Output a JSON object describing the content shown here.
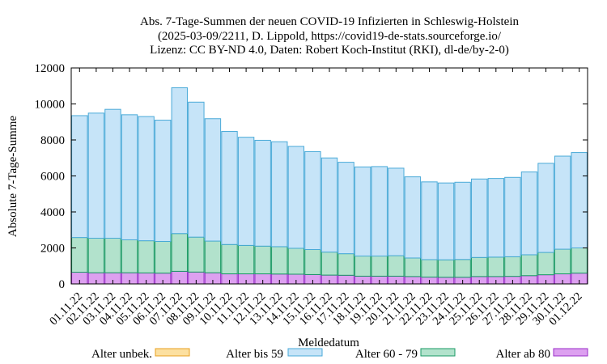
{
  "chart_data": {
    "type": "bar",
    "stacked": true,
    "title_lines": [
      "Abs. 7-Tage-Summen der neuen COVID-19 Infizierten in Schleswig-Holstein",
      "(2025-03-09/2211, D. Lippold, https://covid19-de-stats.sourceforge.io/",
      "Lizenz: CC BY-ND 4.0, Daten: Robert Koch-Institut (RKI), dl-de/by-2-0)"
    ],
    "xlabel": "Meldedatum",
    "ylabel": "Absolute 7-Tage-Summe",
    "ylim": [
      0,
      12000
    ],
    "yticks": [
      "0",
      "2000",
      "4000",
      "6000",
      "8000",
      "10000",
      "12000"
    ],
    "categories": [
      "01.11.22",
      "02.11.22",
      "03.11.22",
      "04.11.22",
      "05.11.22",
      "06.11.22",
      "07.11.22",
      "08.11.22",
      "09.11.22",
      "10.11.22",
      "11.11.22",
      "12.11.22",
      "13.11.22",
      "14.11.22",
      "15.11.22",
      "16.11.22",
      "17.11.22",
      "18.11.22",
      "19.11.22",
      "20.11.22",
      "21.11.22",
      "22.11.22",
      "23.11.22",
      "24.11.22",
      "25.11.22",
      "26.11.22",
      "27.11.22",
      "28.11.22",
      "29.11.22",
      "30.11.22",
      "01.12.22"
    ],
    "series": [
      {
        "name": "Alter ab 80",
        "color": "#dda0f0",
        "edge": "#9a2ec8",
        "values": [
          650,
          620,
          620,
          620,
          610,
          600,
          700,
          660,
          620,
          560,
          560,
          560,
          550,
          540,
          520,
          490,
          480,
          430,
          430,
          430,
          410,
          380,
          370,
          370,
          410,
          410,
          420,
          460,
          510,
          560,
          600
        ]
      },
      {
        "name": "Alter 60 - 79",
        "color": "#b2e2cc",
        "edge": "#1a9a64",
        "values": [
          1930,
          1920,
          1920,
          1830,
          1790,
          1760,
          2100,
          1940,
          1760,
          1630,
          1580,
          1540,
          1520,
          1440,
          1390,
          1280,
          1200,
          1120,
          1120,
          1140,
          1030,
          970,
          970,
          990,
          1060,
          1080,
          1090,
          1160,
          1240,
          1370,
          1400
        ]
      },
      {
        "name": "Alter bis 59",
        "color": "#c6e4f8",
        "edge": "#4aaad8",
        "values": [
          6770,
          6950,
          7160,
          6950,
          6900,
          6740,
          8100,
          7500,
          6800,
          6280,
          6010,
          5880,
          5830,
          5660,
          5440,
          5230,
          5080,
          4950,
          4970,
          4860,
          4510,
          4320,
          4270,
          4290,
          4360,
          4370,
          4410,
          4600,
          4950,
          5170,
          5300
        ]
      },
      {
        "name": "Alter unbek.",
        "color": "#fce0a0",
        "edge": "#e8a020",
        "values": [
          0,
          0,
          0,
          0,
          0,
          0,
          0,
          0,
          0,
          0,
          0,
          0,
          0,
          0,
          0,
          0,
          0,
          0,
          0,
          0,
          0,
          0,
          0,
          0,
          0,
          0,
          0,
          0,
          0,
          0,
          0
        ]
      }
    ],
    "legend": {
      "position": "bottom",
      "order": [
        "Alter unbek.",
        "Alter bis 59",
        "Alter 60 - 79",
        "Alter ab 80"
      ]
    }
  }
}
